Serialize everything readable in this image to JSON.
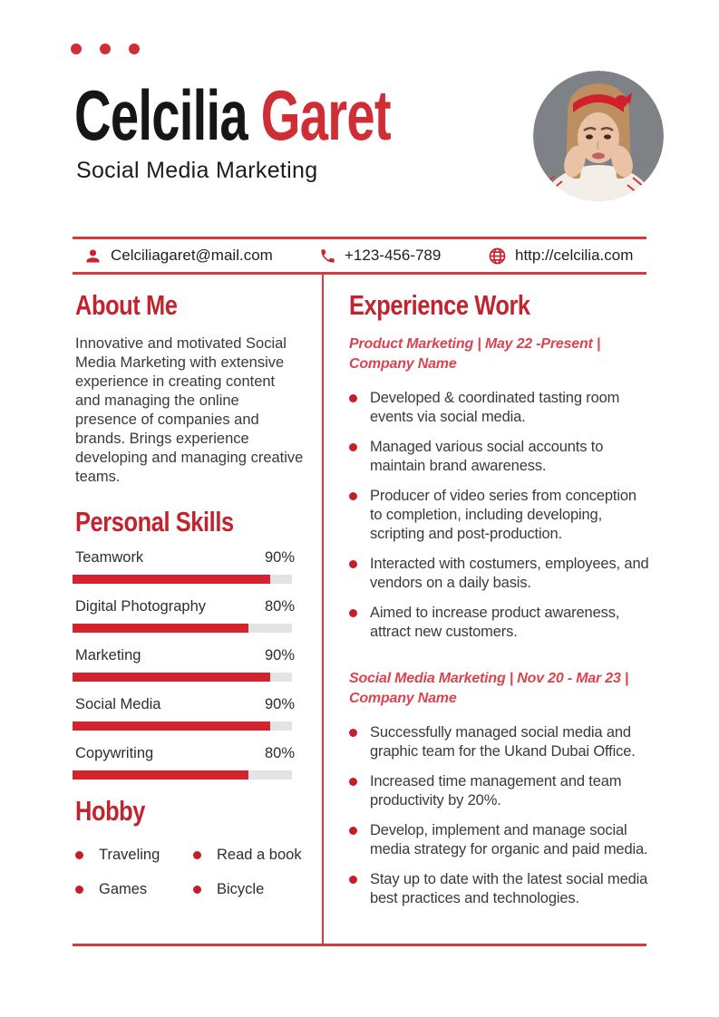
{
  "header": {
    "first_name": "Celcilia ",
    "last_name": "Garet",
    "role": "Social Media Marketing"
  },
  "contact": {
    "email": "Celciliagaret@mail.com",
    "phone": "+123-456-789",
    "website": "http://celcilia.com"
  },
  "about": {
    "heading": "About Me",
    "text": "Innovative and motivated Social Media Marketing with extensive experience in creating content and managing the online presence of companies and brands. Brings experience developing and managing creative teams."
  },
  "skills": {
    "heading": "Personal Skills",
    "items": [
      {
        "label": "Teamwork",
        "percent": 90,
        "display": "90%"
      },
      {
        "label": "Digital Photography",
        "percent": 80,
        "display": "80%"
      },
      {
        "label": "Marketing",
        "percent": 90,
        "display": "90%"
      },
      {
        "label": "Social Media",
        "percent": 90,
        "display": "90%"
      },
      {
        "label": "Copywriting",
        "percent": 80,
        "display": "80%"
      }
    ]
  },
  "hobby": {
    "heading": "Hobby",
    "items": [
      "Traveling",
      "Read a book",
      "Games",
      "Bicycle"
    ]
  },
  "experience": {
    "heading": "Experience Work",
    "jobs": [
      {
        "title": "Product Marketing | May 22 -Present | Company Name",
        "bullets": [
          "Developed & coordinated tasting room events via social media.",
          "Managed various social accounts to maintain brand awareness.",
          "Producer of video series from conception to completion, including developing, scripting and post-production.",
          "Interacted with costumers, employees, and vendors on a daily basis.",
          "Aimed to increase product awareness, attract new customers."
        ]
      },
      {
        "title": "Social Media Marketing | Nov 20 - Mar 23 | Company Name",
        "bullets": [
          "Successfully managed social media and graphic team for the Ukand Dubai Office.",
          "Increased time management and team productivity by 20%.",
          "Develop, implement and manage social media strategy for organic and paid media.",
          "Stay up to date with the latest social media best practices and technologies."
        ]
      }
    ]
  },
  "icons": {
    "email": "user-icon",
    "phone": "phone-icon",
    "website": "globe-icon"
  },
  "colors": {
    "heading_red": "#C2242E",
    "accent_red": "#D02E36",
    "line_red": "#D43B40",
    "subtitle_red": "#DA4450",
    "bar_red": "#D2242E",
    "bar_track": "#E4E3E3",
    "body_text": "#3A3A3A"
  }
}
